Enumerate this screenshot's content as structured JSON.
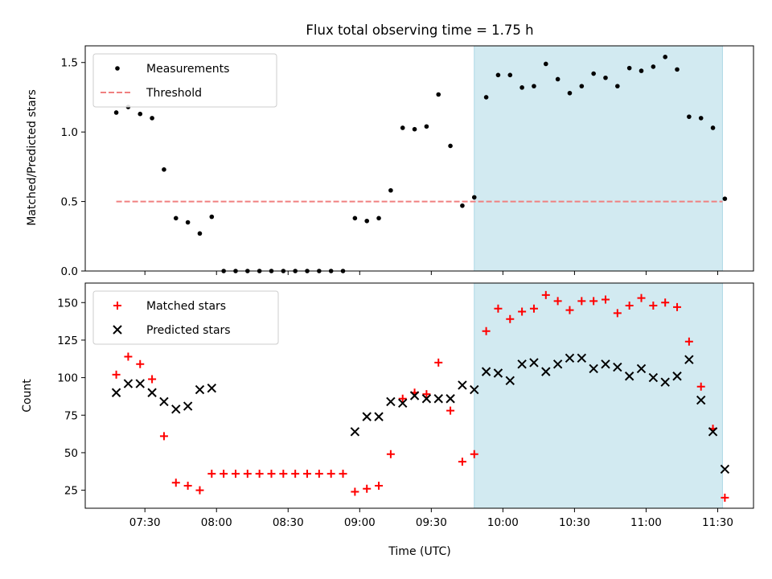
{
  "chart_data": [
    {
      "type": "scatter",
      "title": "Flux total observing time = 1.75 h",
      "xlabel": "",
      "ylabel": "Matched/Predicted stars",
      "ylim": [
        0,
        1.62
      ],
      "yticks": [
        "0.0",
        "0.5",
        "1.0",
        "1.5"
      ],
      "yticks_values": [
        0,
        0.5,
        1.0,
        1.5
      ],
      "shaded_interval": {
        "start": "09:48",
        "end": "11:32",
        "color": "#add8e6"
      },
      "legend": {
        "placement": "upper-left",
        "entries": [
          "Measurements",
          "Threshold"
        ]
      },
      "threshold": {
        "name": "Threshold",
        "value": 0.5,
        "x_start": "07:18",
        "x_end": "11:32",
        "color": "#f08080",
        "style": "dashed"
      },
      "series": [
        {
          "name": "Measurements",
          "color": "#000000",
          "marker": "dot",
          "points": [
            [
              "07:18",
              1.14
            ],
            [
              "07:23",
              1.18
            ],
            [
              "07:28",
              1.13
            ],
            [
              "07:33",
              1.1
            ],
            [
              "07:38",
              0.73
            ],
            [
              "07:43",
              0.38
            ],
            [
              "07:48",
              0.35
            ],
            [
              "07:53",
              0.27
            ],
            [
              "07:58",
              0.39
            ],
            [
              "08:03",
              0.0
            ],
            [
              "08:08",
              0.0
            ],
            [
              "08:13",
              0.0
            ],
            [
              "08:18",
              0.0
            ],
            [
              "08:23",
              0.0
            ],
            [
              "08:28",
              0.0
            ],
            [
              "08:33",
              0.0
            ],
            [
              "08:38",
              0.0
            ],
            [
              "08:43",
              0.0
            ],
            [
              "08:48",
              0.0
            ],
            [
              "08:53",
              0.0
            ],
            [
              "08:58",
              0.38
            ],
            [
              "09:03",
              0.36
            ],
            [
              "09:08",
              0.38
            ],
            [
              "09:13",
              0.58
            ],
            [
              "09:18",
              1.03
            ],
            [
              "09:23",
              1.02
            ],
            [
              "09:28",
              1.04
            ],
            [
              "09:33",
              1.27
            ],
            [
              "09:38",
              0.9
            ],
            [
              "09:43",
              0.47
            ],
            [
              "09:48",
              0.53
            ],
            [
              "09:53",
              1.25
            ],
            [
              "09:58",
              1.41
            ],
            [
              "10:03",
              1.41
            ],
            [
              "10:08",
              1.32
            ],
            [
              "10:13",
              1.33
            ],
            [
              "10:18",
              1.49
            ],
            [
              "10:23",
              1.38
            ],
            [
              "10:28",
              1.28
            ],
            [
              "10:33",
              1.33
            ],
            [
              "10:38",
              1.42
            ],
            [
              "10:43",
              1.39
            ],
            [
              "10:48",
              1.33
            ],
            [
              "10:53",
              1.46
            ],
            [
              "10:58",
              1.44
            ],
            [
              "11:03",
              1.47
            ],
            [
              "11:08",
              1.54
            ],
            [
              "11:13",
              1.45
            ],
            [
              "11:18",
              1.11
            ],
            [
              "11:23",
              1.1
            ],
            [
              "11:28",
              1.03
            ],
            [
              "11:33",
              0.52
            ]
          ]
        }
      ]
    },
    {
      "type": "scatter",
      "title": "",
      "xlabel": "Time (UTC)",
      "ylabel": "Count",
      "ylim": [
        13,
        163
      ],
      "yticks": [
        "25",
        "50",
        "75",
        "100",
        "125",
        "150"
      ],
      "yticks_values": [
        25,
        50,
        75,
        100,
        125,
        150
      ],
      "xticks": [
        "07:30",
        "08:00",
        "08:30",
        "09:00",
        "09:30",
        "10:00",
        "10:30",
        "11:00",
        "11:30"
      ],
      "xlim": [
        "07:05",
        "11:45"
      ],
      "shaded_interval": {
        "start": "09:48",
        "end": "11:32",
        "color": "#add8e6"
      },
      "legend": {
        "placement": "upper-left",
        "entries": [
          "Matched stars",
          "Predicted stars"
        ]
      },
      "series": [
        {
          "name": "Matched stars",
          "color": "#ff0000",
          "marker": "plus",
          "points": [
            [
              "07:18",
              102
            ],
            [
              "07:23",
              114
            ],
            [
              "07:28",
              109
            ],
            [
              "07:33",
              99
            ],
            [
              "07:38",
              61
            ],
            [
              "07:43",
              30
            ],
            [
              "07:48",
              28
            ],
            [
              "07:53",
              25
            ],
            [
              "07:58",
              36
            ],
            [
              "08:03",
              36
            ],
            [
              "08:08",
              36
            ],
            [
              "08:13",
              36
            ],
            [
              "08:18",
              36
            ],
            [
              "08:23",
              36
            ],
            [
              "08:28",
              36
            ],
            [
              "08:33",
              36
            ],
            [
              "08:38",
              36
            ],
            [
              "08:43",
              36
            ],
            [
              "08:48",
              36
            ],
            [
              "08:53",
              36
            ],
            [
              "08:58",
              24
            ],
            [
              "09:03",
              26
            ],
            [
              "09:08",
              28
            ],
            [
              "09:13",
              49
            ],
            [
              "09:18",
              86
            ],
            [
              "09:23",
              90
            ],
            [
              "09:28",
              89
            ],
            [
              "09:33",
              110
            ],
            [
              "09:38",
              78
            ],
            [
              "09:43",
              44
            ],
            [
              "09:48",
              49
            ],
            [
              "09:53",
              131
            ],
            [
              "09:58",
              146
            ],
            [
              "10:03",
              139
            ],
            [
              "10:08",
              144
            ],
            [
              "10:13",
              146
            ],
            [
              "10:18",
              155
            ],
            [
              "10:23",
              151
            ],
            [
              "10:28",
              145
            ],
            [
              "10:33",
              151
            ],
            [
              "10:38",
              151
            ],
            [
              "10:43",
              152
            ],
            [
              "10:48",
              143
            ],
            [
              "10:53",
              148
            ],
            [
              "10:58",
              153
            ],
            [
              "11:03",
              148
            ],
            [
              "11:08",
              150
            ],
            [
              "11:13",
              147
            ],
            [
              "11:18",
              124
            ],
            [
              "11:23",
              94
            ],
            [
              "11:28",
              66
            ],
            [
              "11:33",
              20
            ]
          ]
        },
        {
          "name": "Predicted stars",
          "color": "#000000",
          "marker": "x",
          "points": [
            [
              "07:18",
              90
            ],
            [
              "07:23",
              96
            ],
            [
              "07:28",
              96
            ],
            [
              "07:33",
              90
            ],
            [
              "07:38",
              84
            ],
            [
              "07:43",
              79
            ],
            [
              "07:48",
              81
            ],
            [
              "07:53",
              92
            ],
            [
              "07:58",
              93
            ],
            [
              "08:58",
              64
            ],
            [
              "09:03",
              74
            ],
            [
              "09:08",
              74
            ],
            [
              "09:13",
              84
            ],
            [
              "09:18",
              83
            ],
            [
              "09:23",
              88
            ],
            [
              "09:28",
              86
            ],
            [
              "09:33",
              86
            ],
            [
              "09:38",
              86
            ],
            [
              "09:43",
              95
            ],
            [
              "09:48",
              92
            ],
            [
              "09:53",
              104
            ],
            [
              "09:58",
              103
            ],
            [
              "10:03",
              98
            ],
            [
              "10:08",
              109
            ],
            [
              "10:13",
              110
            ],
            [
              "10:18",
              104
            ],
            [
              "10:23",
              109
            ],
            [
              "10:28",
              113
            ],
            [
              "10:33",
              113
            ],
            [
              "10:38",
              106
            ],
            [
              "10:43",
              109
            ],
            [
              "10:48",
              107
            ],
            [
              "10:53",
              101
            ],
            [
              "10:58",
              106
            ],
            [
              "11:03",
              100
            ],
            [
              "11:08",
              97
            ],
            [
              "11:13",
              101
            ],
            [
              "11:18",
              112
            ],
            [
              "11:23",
              85
            ],
            [
              "11:28",
              64
            ],
            [
              "11:33",
              39
            ]
          ]
        }
      ]
    }
  ]
}
